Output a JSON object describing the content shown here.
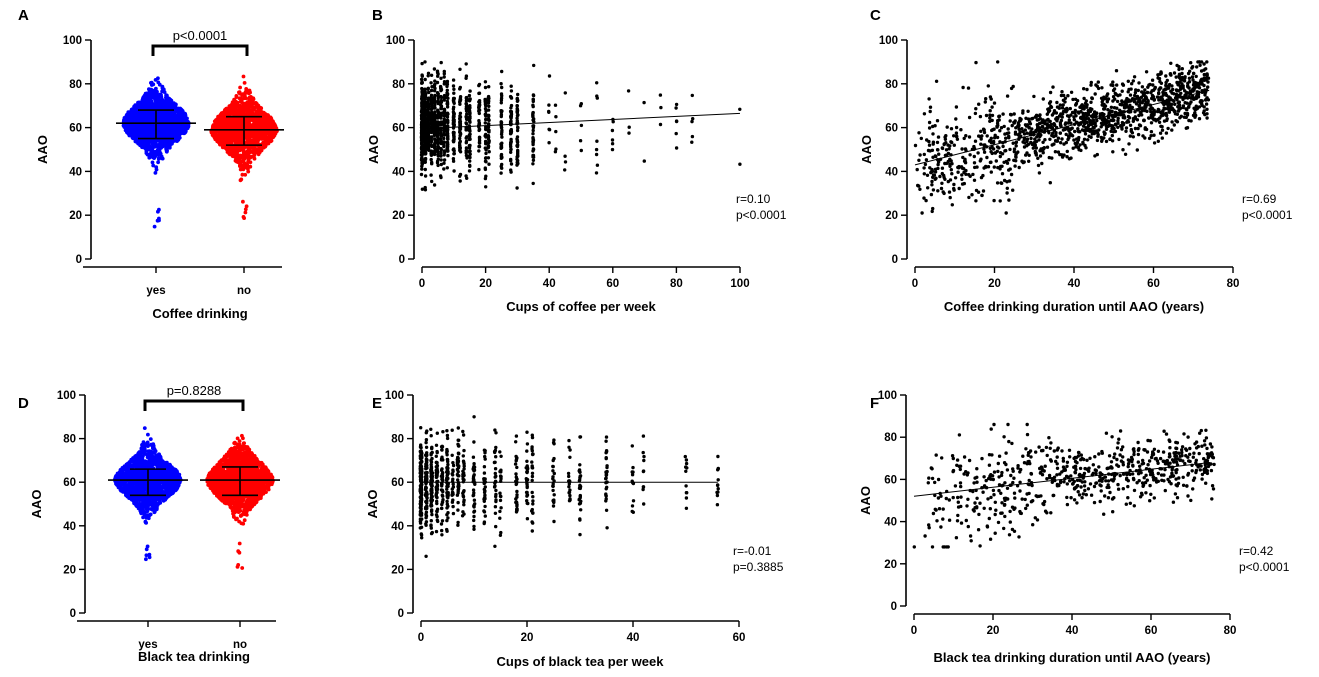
{
  "figure": {
    "panels": [
      {
        "letter": "A",
        "chart_data": {
          "type": "scatter",
          "subtype": "beeswarm",
          "xlabel": "Coffee drinking",
          "ylabel": "AAO",
          "ylim": [
            0,
            100
          ],
          "yticks": [
            0,
            20,
            40,
            60,
            80,
            100
          ],
          "categories": [
            "yes",
            "no"
          ],
          "groups": [
            {
              "name": "yes",
              "color": "#0000ff",
              "mean": 62,
              "sd_low": 55,
              "sd_high": 68,
              "min": 10,
              "max": 90
            },
            {
              "name": "no",
              "color": "#ff0000",
              "mean": 59,
              "sd_low": 52,
              "sd_high": 65,
              "min": 18,
              "max": 88
            }
          ],
          "comparison": "p<0.0001"
        }
      },
      {
        "letter": "B",
        "chart_data": {
          "type": "scatter",
          "xlabel": "Cups of coffee per week",
          "ylabel": "AAO",
          "xlim": [
            0,
            100
          ],
          "ylim": [
            0,
            100
          ],
          "xticks": [
            0,
            20,
            40,
            60,
            80,
            100
          ],
          "yticks": [
            0,
            20,
            40,
            60,
            80,
            100
          ],
          "fit_line": {
            "x": [
              0,
              100
            ],
            "y": [
              59.5,
              66.5
            ]
          },
          "r_text": "r=0.10",
          "p_text": "p<0.0001",
          "point_cloud": {
            "n": 1300,
            "x_distribution": "discrete counts, mostly 0–35, sparse to 100",
            "y_mean": 61,
            "y_sd": 10
          }
        }
      },
      {
        "letter": "C",
        "chart_data": {
          "type": "scatter",
          "xlabel": "Coffee drinking duration until AAO (years)",
          "ylabel": "AAO",
          "xlim": [
            0,
            80
          ],
          "ylim": [
            0,
            100
          ],
          "xticks": [
            0,
            20,
            40,
            60,
            80
          ],
          "yticks": [
            0,
            20,
            40,
            60,
            80,
            100
          ],
          "fit_line": {
            "x": [
              0,
              74
            ],
            "y": [
              43,
              77
            ]
          },
          "r_text": "r=0.69",
          "p_text": "p<0.0001",
          "point_cloud": {
            "n": 1400,
            "x_range": [
              0,
              74
            ],
            "y_range": [
              21,
              90
            ]
          }
        }
      },
      {
        "letter": "D",
        "chart_data": {
          "type": "scatter",
          "subtype": "beeswarm",
          "xlabel": "Black tea drinking",
          "ylabel": "AAO",
          "ylim": [
            0,
            100
          ],
          "yticks": [
            0,
            20,
            40,
            60,
            80,
            100
          ],
          "categories": [
            "yes",
            "no"
          ],
          "groups": [
            {
              "name": "yes",
              "color": "#0000ff",
              "mean": 61,
              "sd_low": 54,
              "sd_high": 66,
              "min": 18,
              "max": 86
            },
            {
              "name": "no",
              "color": "#ff0000",
              "mean": 61,
              "sd_low": 54,
              "sd_high": 67,
              "min": 20,
              "max": 90
            }
          ],
          "comparison": "p=0.8288"
        }
      },
      {
        "letter": "E",
        "chart_data": {
          "type": "scatter",
          "xlabel": "Cups of black tea per week",
          "ylabel": "AAO",
          "xlim": [
            0,
            60
          ],
          "ylim": [
            0,
            100
          ],
          "xticks": [
            0,
            20,
            40,
            60
          ],
          "yticks": [
            0,
            20,
            40,
            60,
            80,
            100
          ],
          "fit_line": {
            "x": [
              0,
              56
            ],
            "y": [
              60,
              60
            ]
          },
          "r_text": "r=-0.01",
          "p_text": "p=0.3885",
          "point_cloud": {
            "n": 900,
            "x_distribution": "discrete counts, mostly 0–35, sparse to 56",
            "y_mean": 60,
            "y_sd": 10
          }
        }
      },
      {
        "letter": "F",
        "chart_data": {
          "type": "scatter",
          "xlabel": "Black tea drinking duration until AAO (years)",
          "ylabel": "AAO",
          "xlim": [
            0,
            80
          ],
          "ylim": [
            0,
            100
          ],
          "xticks": [
            0,
            20,
            40,
            60,
            80
          ],
          "yticks": [
            0,
            20,
            40,
            60,
            80,
            100
          ],
          "fit_line": {
            "x": [
              0,
              75
            ],
            "y": [
              52,
              68
            ]
          },
          "r_text": "r=0.42",
          "p_text": "p<0.0001",
          "point_cloud": {
            "n": 700,
            "x_range": [
              0,
              76
            ],
            "y_range": [
              28,
              86
            ]
          }
        }
      }
    ]
  }
}
